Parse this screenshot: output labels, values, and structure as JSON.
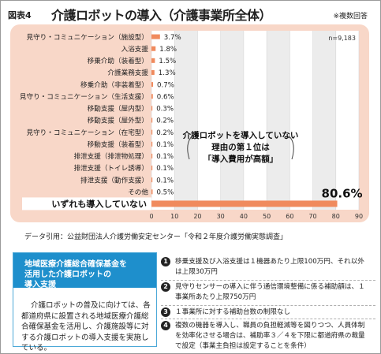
{
  "header": {
    "figure_label": "図表4",
    "title": "介護ロボットの導入（介護事業所全体）",
    "note": "※複数回答"
  },
  "chart_data": {
    "type": "bar",
    "orientation": "horizontal",
    "n_label": "n=9,183",
    "categories": [
      "見守り・コミュニケーション（施設型）",
      "入浴支援",
      "移乗介助（装着型）",
      "介護業務支援",
      "移乗介助（非装着型）",
      "見守り・コミュニケーション（生活支援）",
      "移動支援（屋内型）",
      "移動支援（屋外型）",
      "見守り・コミュニケーション（在宅型）",
      "移動支援（装着型）",
      "排泄支援（排泄物処理）",
      "排泄支援（トイレ誘導）",
      "排泄支援（動作支援）",
      "その他",
      "いずれも導入していない"
    ],
    "values": [
      3.7,
      1.8,
      1.5,
      1.3,
      0.7,
      0.6,
      0.3,
      0.2,
      0.2,
      0.1,
      0.1,
      0.1,
      0.1,
      0.5,
      80.6
    ],
    "value_labels": [
      "3.7%",
      "1.8%",
      "1.5%",
      "1.3%",
      "0.7%",
      "0.6%",
      "0.3%",
      "0.2%",
      "0.2%",
      "0.1%",
      "0.1%",
      "0.1%",
      "0.1%",
      "0.5%",
      "80.6%"
    ],
    "xlim": [
      0,
      90
    ],
    "x_ticks": [
      "0",
      "10",
      "20",
      "30",
      "40",
      "50",
      "60",
      "70",
      "80",
      "90"
    ],
    "grid": true,
    "bar_color": "#f08a5d",
    "highlight_color": "#f08a5d",
    "callout": [
      "介護ロボットを導入していない",
      "理由の第１位は",
      "「導入費用が高額」"
    ]
  },
  "source": "データ引用：公益財団法人介護労働安定センター「令和２年度介護労働実態調査」",
  "support_box": {
    "heading_lines": [
      "地域医療介護総合確保基金を",
      "活用した介護ロボットの",
      "導入支援"
    ],
    "body": "介護ロボットの普及に向けては、各都道府県に設置される地域医療介護総合確保基金を活用し、介護施設等に対する介護ロボットの導入支援を実施している。",
    "color": "#1e8fcc"
  },
  "items": [
    {
      "num": "1",
      "text": "移乗支援及び入浴支援は１機器あたり上限100万円、それ以外は上限30万円"
    },
    {
      "num": "2",
      "text": "見守りセンサーの導入に伴う通信環境整備に係る補助額は、１事業所あたり上限750万円"
    },
    {
      "num": "3",
      "text": "１事業所に対する補助台数の制限なし"
    },
    {
      "num": "4",
      "text": "複数の機器を導入し、職員の負担軽減等を図りつつ、人員体制を効率化させる場合は、補助率３／４を下限に都道府県の裁量で設定（事業主負担は設定することを条件）"
    }
  ]
}
